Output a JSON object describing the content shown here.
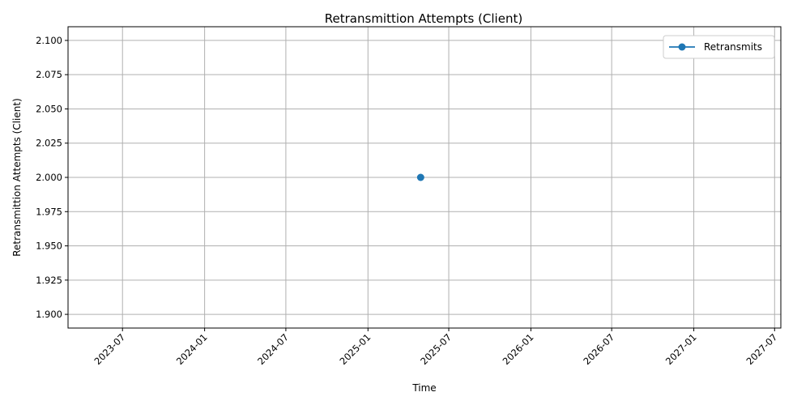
{
  "chart_data": {
    "type": "line",
    "title": "Retransmittion Attempts (Client)",
    "xlabel": "Time",
    "ylabel": "Retransmittion Attempts (Client)",
    "x_ticks": [
      "2023-07",
      "2024-01",
      "2024-07",
      "2025-01",
      "2025-07",
      "2026-01",
      "2026-07",
      "2027-01",
      "2027-07"
    ],
    "y_ticks": [
      "1.900",
      "1.925",
      "1.950",
      "1.975",
      "2.000",
      "2.025",
      "2.050",
      "2.075",
      "2.100"
    ],
    "xlim": [
      "2023-03-01",
      "2027-07-15"
    ],
    "ylim": [
      1.89,
      2.11
    ],
    "grid": true,
    "legend_position": "top-right",
    "series": [
      {
        "name": "Retransmits",
        "color": "#1f77b4",
        "marker": "circle",
        "points": [
          {
            "x": "2025-04-29",
            "y": 2.0
          }
        ]
      }
    ]
  }
}
